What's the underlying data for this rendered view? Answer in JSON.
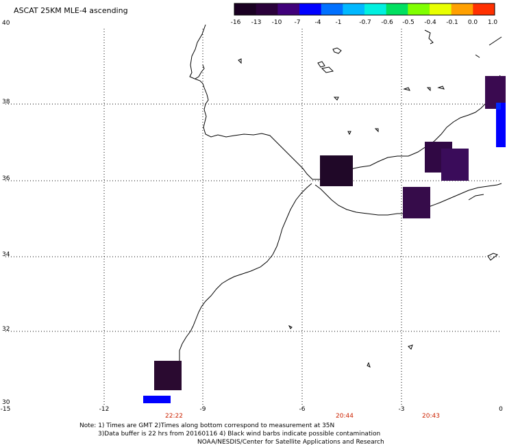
{
  "title": "ASCAT 25KM MLE-4 ascending",
  "colorbar": {
    "labels": [
      "-16",
      "-13",
      "-10",
      "-7",
      "-4",
      "-1",
      "-0.7",
      "-0.6",
      "-0.5",
      "-0.4",
      "-0.1",
      "0.0",
      "1.0"
    ],
    "colors": [
      "#1a0022",
      "#2a003a",
      "#40007a",
      "#0000ff",
      "#0070ff",
      "#00b8ff",
      "#00f0e0",
      "#00e060",
      "#80ff00",
      "#e8ff00",
      "#ffa000",
      "#ff3000"
    ]
  },
  "axes": {
    "lon_labels": [
      "-15",
      "-12",
      "-9",
      "-6",
      "-3",
      "0"
    ],
    "lat_labels": [
      "40",
      "38",
      "36",
      "34",
      "32",
      "30"
    ]
  },
  "time_labels": [
    "22:22",
    "20:44",
    "20:43"
  ],
  "note_lines": [
    "Note: 1) Times are GMT 2)Times along bottom correspond to measurement at 35N",
    "3)Data buffer is 22 hrs from 20160116 4) Black wind barbs indicate possible contamination",
    "NOAA/NESDIS/Center for Satellite Applications and Research"
  ],
  "data_cells": [
    {
      "color": "#2a0a30"
    },
    {
      "color": "#200828"
    },
    {
      "color": "#300844"
    },
    {
      "color": "#3a0c5a"
    },
    {
      "color": "#360c4a"
    },
    {
      "color": "#3a0a50"
    },
    {
      "color": "#0000ff"
    },
    {
      "color": "#0000ff"
    },
    {
      "color": "#0028ff"
    }
  ]
}
